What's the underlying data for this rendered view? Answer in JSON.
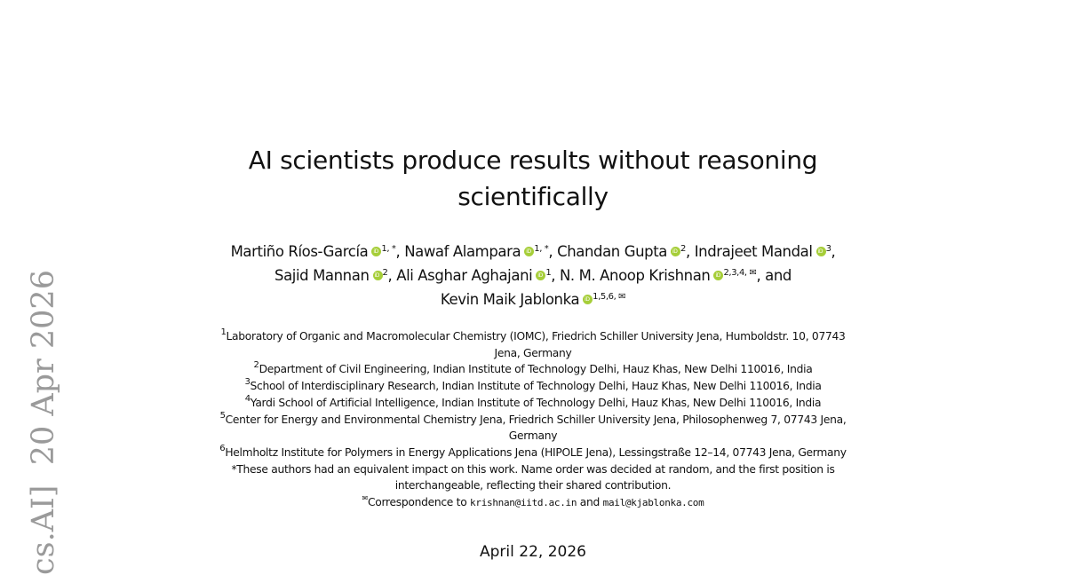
{
  "sidebar_stamp": "cs.AI]  20 Apr 2026",
  "title_lines": [
    "AI scientists produce results without reasoning",
    "scientifically"
  ],
  "authors": [
    {
      "name": "Martiño Ríos-García",
      "sup": "1, *",
      "sep": ", "
    },
    {
      "name": "Nawaf Alampara",
      "sup": "1, *",
      "sep": ", "
    },
    {
      "name": "Chandan Gupta",
      "sup": "2",
      "sep": ", "
    },
    {
      "name": "Indrajeet Mandal",
      "sup": "3",
      "sep": ","
    },
    {
      "name": "Sajid Mannan",
      "sup": "2",
      "sep": ", "
    },
    {
      "name": "Ali Asghar Aghajani",
      "sup": "1",
      "sep": ", "
    },
    {
      "name": "N. M. Anoop Krishnan",
      "sup": "2,3,4, ✉",
      "sep": ", and"
    },
    {
      "name": "Kevin Maik Jablonka",
      "sup": "1,5,6, ✉",
      "sep": ""
    }
  ],
  "affiliations": [
    {
      "sup": "1",
      "text": "Laboratory of Organic and Macromolecular Chemistry (IOMC), Friedrich Schiller University Jena, Humboldstr. 10, 07743",
      "cont": "Jena, Germany"
    },
    {
      "sup": "2",
      "text": "Department of Civil Engineering, Indian Institute of Technology Delhi, Hauz Khas, New Delhi 110016, India"
    },
    {
      "sup": "3",
      "text": "School of Interdisciplinary Research, Indian Institute of Technology Delhi, Hauz Khas, New Delhi 110016, India"
    },
    {
      "sup": "4",
      "text": "Yardi School of Artificial Intelligence, Indian Institute of Technology Delhi, Hauz Khas, New Delhi 110016, India"
    },
    {
      "sup": "5",
      "text": "Center for Energy and Environmental Chemistry Jena, Friedrich Schiller University Jena, Philosophenweg 7, 07743 Jena,",
      "cont": "Germany"
    },
    {
      "sup": "6",
      "text": "Helmholtz Institute for Polymers in Energy Applications Jena (HIPOLE Jena), Lessingstraße 12–14, 07743 Jena, Germany"
    }
  ],
  "equal_note": {
    "sup": "*",
    "line1": "These authors had an equivalent impact on this work. Name order was decided at random, and the first position is",
    "line2": "interchangeable, reflecting their shared contribution."
  },
  "correspondence": {
    "sup": "✉",
    "prefix": "Correspondence to ",
    "email1": "krishnan@iitd.ac.in",
    "middle": " and ",
    "email2": "mail@kjablonka.com"
  },
  "date": "April 22, 2026",
  "colors": {
    "orcid": "#a6ce39",
    "stamp": "#9a9a9a"
  },
  "icons": {
    "orcid": "orcid-icon",
    "correspondence": "envelope-icon"
  }
}
